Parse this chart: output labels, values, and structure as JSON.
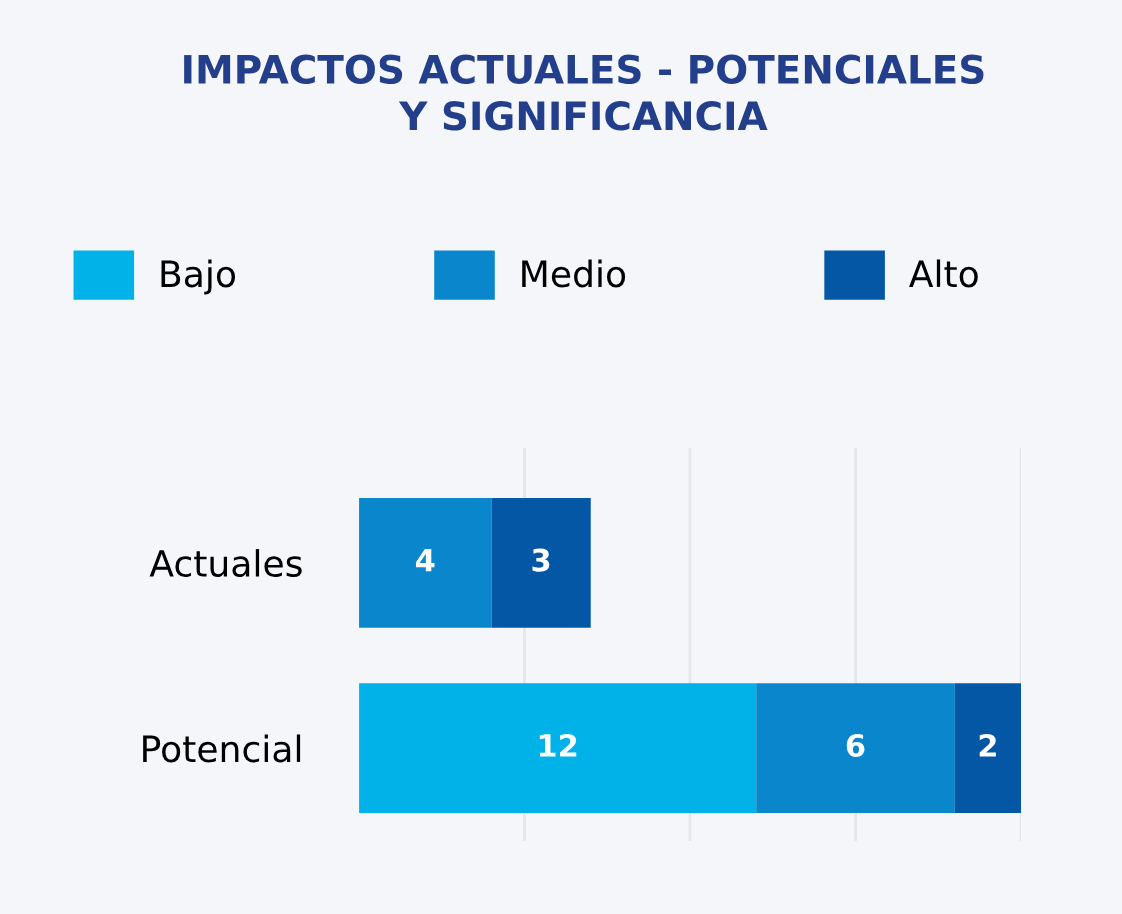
{
  "chart_data": {
    "type": "bar",
    "orientation": "horizontal",
    "stacked": true,
    "title": "IMPACTOS ACTUALES - POTENCIALES\nY SIGNIFICANCIA",
    "categories": [
      "Actuales",
      "Potencial"
    ],
    "series": [
      {
        "name": "Bajo",
        "color": "#00b2e8",
        "values": [
          null,
          12
        ],
        "value_labels": [
          null,
          "12"
        ]
      },
      {
        "name": "Medio",
        "color": "#0a87cc",
        "values": [
          4,
          6
        ],
        "value_labels": [
          "4",
          "6"
        ]
      },
      {
        "name": "Alto",
        "color": "#0457a4",
        "values": [
          3,
          2
        ],
        "value_labels": [
          "3",
          "2"
        ]
      }
    ],
    "xlim": [
      0,
      20
    ],
    "xticks": [
      {
        "value": 5,
        "label": null
      },
      {
        "value": 10,
        "label": null
      },
      {
        "value": 15,
        "label": null
      },
      {
        "value": 20,
        "label": null
      }
    ],
    "grid": "x",
    "legend": "top",
    "tick_labels": "y"
  }
}
